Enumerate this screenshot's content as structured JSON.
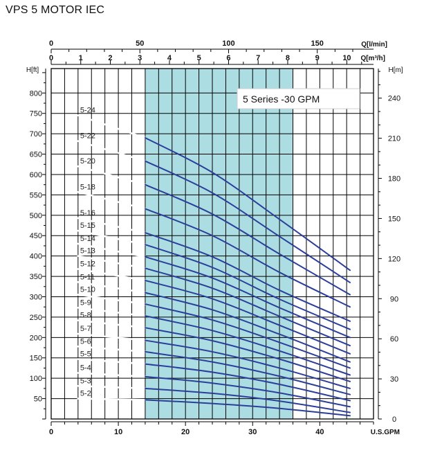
{
  "title": "VPS 5 MOTOR IEC",
  "chart_data": {
    "type": "line",
    "annotation": "5 Series -30 GPM",
    "colors": {
      "curve": "#2b3f9a",
      "band": "#acdde2",
      "grid": "#000000"
    },
    "x_axis": {
      "label": "U.S.GPM",
      "range": [
        0,
        48
      ],
      "ticks": [
        {
          "v": 0,
          "t": "0"
        },
        {
          "v": 10,
          "t": "10"
        },
        {
          "v": 20,
          "t": "20"
        },
        {
          "v": 30,
          "t": "30"
        },
        {
          "v": 40,
          "t": "40"
        }
      ]
    },
    "x_axis_top_lpm": {
      "label": "Q[l/min]",
      "ticks": [
        {
          "v": 0,
          "t": "0"
        },
        {
          "v": 50,
          "t": "50"
        },
        {
          "v": 100,
          "t": "100"
        },
        {
          "v": 150,
          "t": "150"
        }
      ]
    },
    "x_axis_top_m3h": {
      "label": "Q[m³/h]",
      "ticks": [
        {
          "v": 0,
          "t": "0"
        },
        {
          "v": 1,
          "t": "1"
        },
        {
          "v": 2,
          "t": "2"
        },
        {
          "v": 3,
          "t": "3"
        },
        {
          "v": 4,
          "t": "4"
        },
        {
          "v": 5,
          "t": "5"
        },
        {
          "v": 6,
          "t": "6"
        },
        {
          "v": 7,
          "t": "7"
        },
        {
          "v": 8,
          "t": "8"
        },
        {
          "v": 9,
          "t": "9"
        },
        {
          "v": 10,
          "t": "10"
        }
      ]
    },
    "y_axis_left": {
      "label": "H[ft]",
      "range": [
        0,
        860
      ],
      "ticks": [
        {
          "v": 50,
          "t": "50"
        },
        {
          "v": 100,
          "t": "100"
        },
        {
          "v": 150,
          "t": "150"
        },
        {
          "v": 200,
          "t": "200"
        },
        {
          "v": 250,
          "t": "250"
        },
        {
          "v": 300,
          "t": "300"
        },
        {
          "v": 350,
          "t": "350"
        },
        {
          "v": 400,
          "t": "400"
        },
        {
          "v": 450,
          "t": "450"
        },
        {
          "v": 500,
          "t": "500"
        },
        {
          "v": 550,
          "t": "550"
        },
        {
          "v": 600,
          "t": "600"
        },
        {
          "v": 650,
          "t": "650"
        },
        {
          "v": 700,
          "t": "700"
        },
        {
          "v": 750,
          "t": "750"
        },
        {
          "v": 800,
          "t": "800"
        }
      ]
    },
    "y_axis_right": {
      "label": "H[m]",
      "ticks": [
        {
          "v": 0,
          "t": "0"
        },
        {
          "v": 30,
          "t": "30"
        },
        {
          "v": 60,
          "t": "60"
        },
        {
          "v": 90,
          "t": "90"
        },
        {
          "v": 120,
          "t": "120"
        },
        {
          "v": 150,
          "t": "150"
        },
        {
          "v": 180,
          "t": "180"
        },
        {
          "v": 210,
          "t": "210"
        },
        {
          "v": 240,
          "t": "240"
        }
      ]
    },
    "recommended_range_gpm": [
      14,
      36
    ],
    "series": [
      {
        "name": "5-2",
        "x": [
          4,
          14,
          24,
          34,
          44.5
        ],
        "values": [
          50,
          47,
          38,
          26,
          8
        ]
      },
      {
        "name": "5-3",
        "x": [
          4,
          14,
          24,
          34,
          44.5
        ],
        "values": [
          81,
          75,
          63,
          44,
          16
        ]
      },
      {
        "name": "5-4",
        "x": [
          4,
          14,
          24,
          34,
          44.5
        ],
        "values": [
          113,
          104,
          88,
          64,
          30
        ]
      },
      {
        "name": "5-5",
        "x": [
          4,
          14,
          24,
          34,
          44.5
        ],
        "values": [
          147,
          135,
          115,
          85,
          45
        ]
      },
      {
        "name": "5-6",
        "x": [
          4,
          14,
          24,
          34,
          44.5
        ],
        "values": [
          178,
          165,
          140,
          105,
          60
        ]
      },
      {
        "name": "5-7",
        "x": [
          4,
          14,
          24,
          34,
          44.5
        ],
        "values": [
          209,
          193,
          165,
          125,
          75
        ]
      },
      {
        "name": "5-8",
        "x": [
          4,
          14,
          24,
          34,
          44.5
        ],
        "values": [
          242,
          224,
          192,
          147,
          92
        ]
      },
      {
        "name": "5-9",
        "x": [
          4,
          14,
          24,
          34,
          44.5
        ],
        "values": [
          273,
          253,
          217,
          167,
          108
        ]
      },
      {
        "name": "5-10",
        "x": [
          4,
          14,
          24,
          34,
          44.5
        ],
        "values": [
          305,
          282,
          243,
          188,
          125
        ]
      },
      {
        "name": "5-11",
        "x": [
          4,
          14,
          24,
          34,
          44.5
        ],
        "values": [
          336,
          310,
          268,
          208,
          140
        ]
      },
      {
        "name": "5-12",
        "x": [
          4,
          14,
          24,
          34,
          44.5
        ],
        "values": [
          368,
          340,
          295,
          230,
          160
        ]
      },
      {
        "name": "5-13",
        "x": [
          4,
          14,
          24,
          34,
          44.5
        ],
        "values": [
          400,
          370,
          321,
          252,
          180
        ]
      },
      {
        "name": "5-14",
        "x": [
          4,
          14,
          24,
          34,
          44.5
        ],
        "values": [
          430,
          398,
          346,
          273,
          200
        ]
      },
      {
        "name": "5-15",
        "x": [
          4,
          14,
          24,
          34,
          44.5
        ],
        "values": [
          462,
          428,
          372,
          294,
          220
        ]
      },
      {
        "name": "5-16",
        "x": [
          4,
          14,
          24,
          34,
          44.5
        ],
        "values": [
          493,
          457,
          398,
          316,
          240
        ]
      },
      {
        "name": "5-18",
        "x": [
          4,
          14,
          24,
          34,
          44.5
        ],
        "values": [
          557,
          516,
          450,
          360,
          275
        ]
      },
      {
        "name": "5-20",
        "x": [
          4,
          14,
          24,
          34,
          44.5
        ],
        "values": [
          620,
          575,
          503,
          405,
          305
        ]
      },
      {
        "name": "5-22",
        "x": [
          4,
          14,
          24,
          34,
          44.5
        ],
        "values": [
          682,
          633,
          555,
          448,
          335
        ]
      },
      {
        "name": "5-24",
        "x": [
          4,
          14,
          24,
          34,
          44.5
        ],
        "values": [
          745,
          690,
          605,
          490,
          365
        ]
      }
    ]
  }
}
